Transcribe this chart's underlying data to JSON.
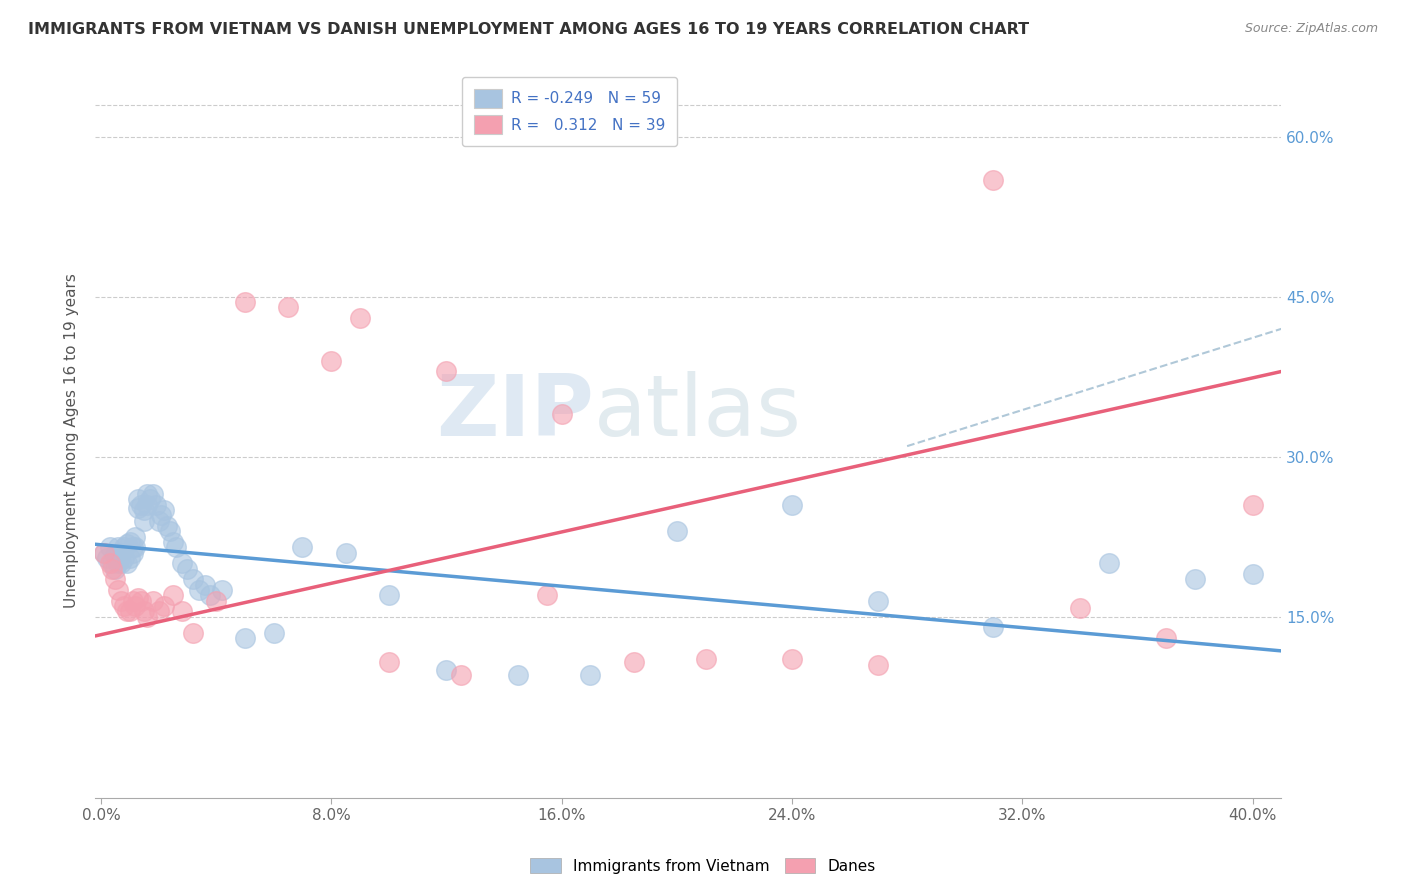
{
  "title": "IMMIGRANTS FROM VIETNAM VS DANISH UNEMPLOYMENT AMONG AGES 16 TO 19 YEARS CORRELATION CHART",
  "source": "Source: ZipAtlas.com",
  "ylabel": "Unemployment Among Ages 16 to 19 years",
  "y_ticks": [
    "15.0%",
    "30.0%",
    "45.0%",
    "60.0%"
  ],
  "y_tick_vals": [
    0.15,
    0.3,
    0.45,
    0.6
  ],
  "x_ticks": [
    0.0,
    0.08,
    0.16,
    0.24,
    0.32,
    0.4
  ],
  "y_min": -0.02,
  "y_max": 0.65,
  "x_min": -0.002,
  "x_max": 0.41,
  "color_blue": "#a8c4e0",
  "color_pink": "#f4a0b0",
  "line_blue": "#5b9bd5",
  "line_pink": "#e8607a",
  "line_dashed": "#b0c8d8",
  "watermark_zip": "ZIP",
  "watermark_atlas": "atlas",
  "blue_scatter_x": [
    0.001,
    0.002,
    0.003,
    0.004,
    0.005,
    0.005,
    0.006,
    0.006,
    0.007,
    0.007,
    0.008,
    0.008,
    0.009,
    0.009,
    0.01,
    0.01,
    0.011,
    0.011,
    0.012,
    0.012,
    0.013,
    0.013,
    0.014,
    0.015,
    0.015,
    0.016,
    0.016,
    0.017,
    0.018,
    0.019,
    0.02,
    0.021,
    0.022,
    0.023,
    0.024,
    0.025,
    0.026,
    0.028,
    0.03,
    0.032,
    0.034,
    0.036,
    0.038,
    0.042,
    0.05,
    0.06,
    0.07,
    0.085,
    0.1,
    0.12,
    0.145,
    0.17,
    0.2,
    0.24,
    0.27,
    0.31,
    0.35,
    0.38,
    0.4
  ],
  "blue_scatter_y": [
    0.21,
    0.205,
    0.215,
    0.2,
    0.195,
    0.208,
    0.2,
    0.215,
    0.2,
    0.21,
    0.215,
    0.205,
    0.2,
    0.218,
    0.22,
    0.205,
    0.21,
    0.215,
    0.225,
    0.215,
    0.26,
    0.252,
    0.255,
    0.25,
    0.24,
    0.265,
    0.255,
    0.26,
    0.265,
    0.255,
    0.24,
    0.245,
    0.25,
    0.235,
    0.23,
    0.22,
    0.215,
    0.2,
    0.195,
    0.185,
    0.175,
    0.18,
    0.17,
    0.175,
    0.13,
    0.135,
    0.215,
    0.21,
    0.17,
    0.1,
    0.095,
    0.095,
    0.23,
    0.255,
    0.165,
    0.14,
    0.2,
    0.185,
    0.19
  ],
  "pink_scatter_x": [
    0.001,
    0.003,
    0.004,
    0.005,
    0.006,
    0.007,
    0.008,
    0.009,
    0.01,
    0.011,
    0.012,
    0.013,
    0.014,
    0.015,
    0.016,
    0.018,
    0.02,
    0.022,
    0.025,
    0.028,
    0.032,
    0.04,
    0.05,
    0.065,
    0.08,
    0.1,
    0.125,
    0.155,
    0.185,
    0.21,
    0.24,
    0.27,
    0.31,
    0.34,
    0.37,
    0.4,
    0.16,
    0.12,
    0.09
  ],
  "pink_scatter_y": [
    0.21,
    0.2,
    0.195,
    0.185,
    0.175,
    0.165,
    0.16,
    0.155,
    0.155,
    0.165,
    0.16,
    0.168,
    0.165,
    0.155,
    0.15,
    0.165,
    0.155,
    0.16,
    0.17,
    0.155,
    0.135,
    0.165,
    0.445,
    0.44,
    0.39,
    0.108,
    0.095,
    0.17,
    0.108,
    0.11,
    0.11,
    0.105,
    0.56,
    0.158,
    0.13,
    0.255,
    0.34,
    0.38,
    0.43
  ],
  "blue_line_x": [
    -0.002,
    0.41
  ],
  "blue_line_y": [
    0.218,
    0.118
  ],
  "pink_line_x": [
    -0.002,
    0.41
  ],
  "pink_line_y": [
    0.132,
    0.38
  ],
  "dashed_line_x": [
    0.28,
    0.41
  ],
  "dashed_line_y": [
    0.31,
    0.42
  ]
}
